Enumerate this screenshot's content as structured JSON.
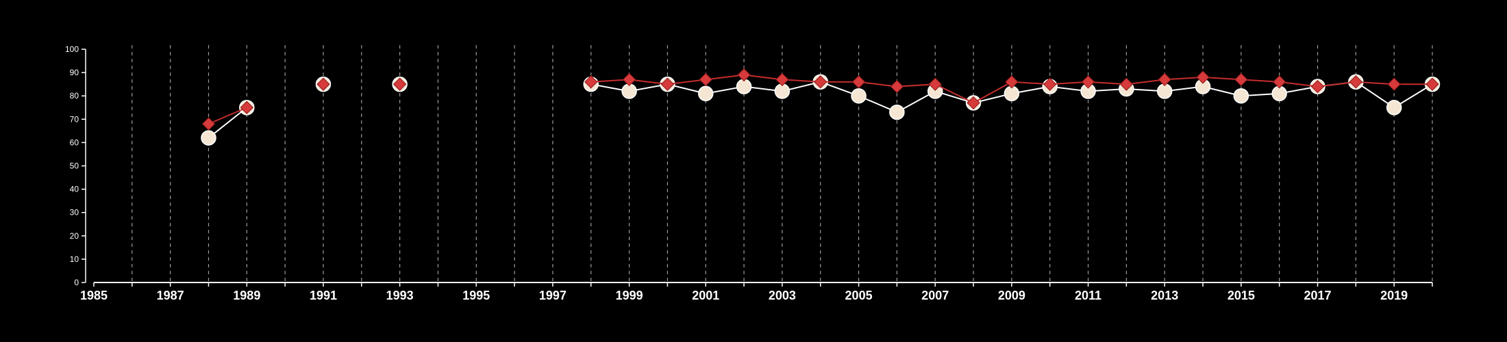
{
  "chart_data": {
    "type": "line",
    "title": "",
    "xlabel": "",
    "ylabel": "",
    "xlim": [
      1985,
      2020
    ],
    "ylim": [
      0,
      100
    ],
    "x_ticks": [
      1985,
      1987,
      1989,
      1991,
      1993,
      1995,
      1997,
      1999,
      2001,
      2003,
      2005,
      2007,
      2009,
      2011,
      2013,
      2015,
      2017,
      2019
    ],
    "y_ticks": [
      0,
      10,
      20,
      30,
      40,
      50,
      60,
      70,
      80,
      90,
      100
    ],
    "grid": "vertical dashed lines at each year",
    "x": [
      1985,
      1986,
      1987,
      1988,
      1989,
      1990,
      1991,
      1992,
      1993,
      1994,
      1995,
      1996,
      1997,
      1998,
      1999,
      2000,
      2001,
      2002,
      2003,
      2004,
      2005,
      2006,
      2007,
      2008,
      2009,
      2010,
      2011,
      2012,
      2013,
      2014,
      2015,
      2016,
      2017,
      2018,
      2019,
      2020
    ],
    "series": [
      {
        "marker": "circle",
        "color": "#ffffff",
        "marker_fill": "#f5e6d3",
        "values": [
          null,
          null,
          null,
          62,
          75,
          null,
          85,
          null,
          85,
          null,
          null,
          null,
          null,
          85,
          82,
          85,
          81,
          84,
          82,
          86,
          80,
          73,
          82,
          77,
          81,
          84,
          82,
          83,
          82,
          84,
          80,
          81,
          84,
          86,
          75,
          85
        ]
      },
      {
        "marker": "diamond",
        "color": "#c62d2d",
        "marker_fill": "#d63a3a",
        "values": [
          null,
          null,
          null,
          68,
          75,
          null,
          85,
          null,
          85,
          null,
          null,
          null,
          null,
          86,
          87,
          85,
          87,
          89,
          87,
          86,
          86,
          84,
          85,
          77,
          86,
          85,
          86,
          85,
          87,
          88,
          87,
          86,
          84,
          86,
          85,
          85
        ]
      }
    ]
  }
}
